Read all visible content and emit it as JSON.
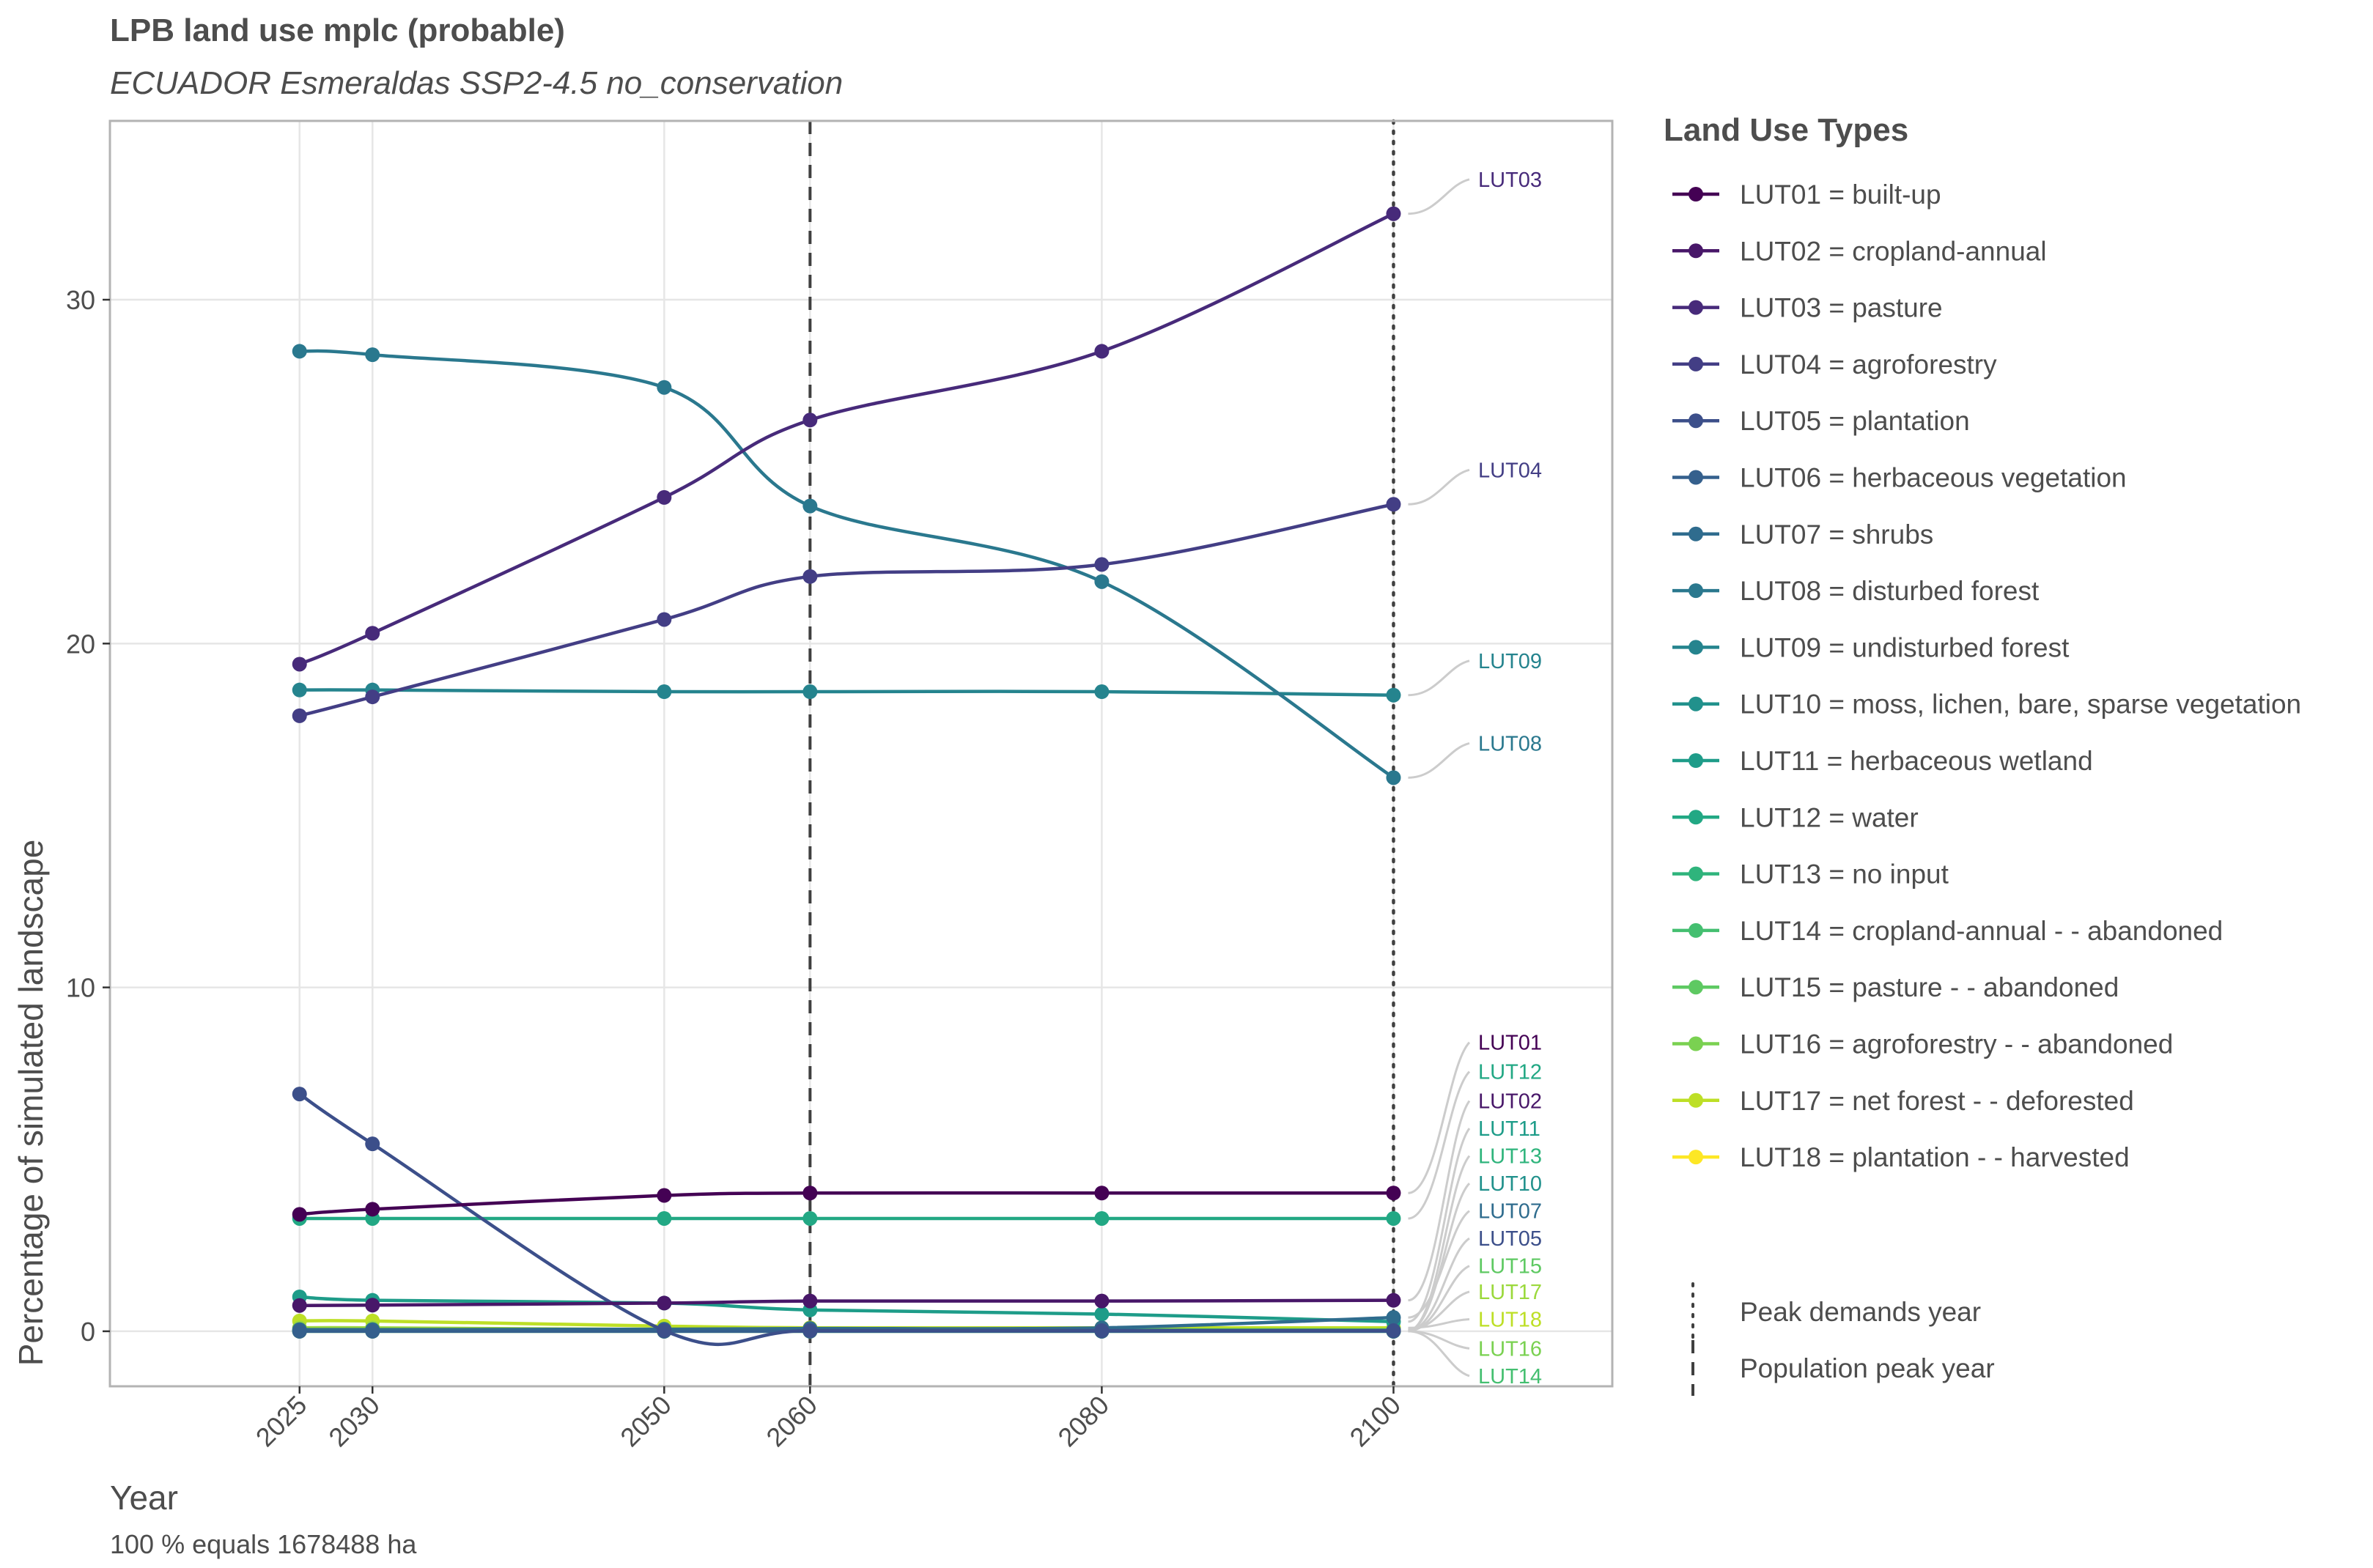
{
  "chart_data": {
    "type": "line",
    "title": "LPB land use mplc (probable)",
    "subtitle": "ECUADOR Esmeraldas SSP2-4.5 no_conservation",
    "xlabel": "Year",
    "ylabel": "Percentage of simulated landscape",
    "caption": "100 % equals 1678488 ha",
    "x": [
      2025,
      2030,
      2050,
      2060,
      2080,
      2100
    ],
    "xlim": [
      2012,
      2115
    ],
    "ylim": [
      -1.6,
      35.2
    ],
    "x_ticks": [
      2025,
      2030,
      2050,
      2060,
      2080,
      2100
    ],
    "y_ticks": [
      0,
      10,
      20,
      30
    ],
    "grid": true,
    "reference_lines": [
      {
        "x": 2060,
        "style": "dashed",
        "label": "Population peak year"
      },
      {
        "x": 2100,
        "style": "dotted",
        "label": "Peak demands year"
      }
    ],
    "legend": {
      "title": "Land Use Types",
      "placement": "right",
      "line_types_title": ""
    },
    "series": [
      {
        "id": "LUT01",
        "name": "LUT01 = built-up",
        "color": "#440154",
        "values": [
          3.4,
          3.55,
          3.95,
          4.02,
          4.02,
          4.02
        ],
        "end_label": "LUT01",
        "label_y": 8.4
      },
      {
        "id": "LUT02",
        "name": "LUT02 = cropland-annual",
        "color": "#481769",
        "values": [
          0.75,
          0.76,
          0.82,
          0.88,
          0.88,
          0.9
        ],
        "end_label": "LUT02",
        "label_y": 6.7
      },
      {
        "id": "LUT03",
        "name": "LUT03 = pasture",
        "color": "#472A7A",
        "values": [
          19.4,
          20.3,
          24.25,
          26.5,
          28.5,
          32.5
        ],
        "end_label": "LUT03",
        "label_y": 33.5
      },
      {
        "id": "LUT04",
        "name": "LUT04 = agroforestry",
        "color": "#433E85",
        "values": [
          17.9,
          18.45,
          20.7,
          21.95,
          22.3,
          24.05
        ],
        "end_label": "LUT04",
        "label_y": 25.05
      },
      {
        "id": "LUT05",
        "name": "LUT05 = plantation",
        "color": "#3C4F8A",
        "values": [
          6.9,
          5.45,
          0.02,
          0.02,
          0.02,
          0.02
        ],
        "end_label": "LUT05",
        "label_y": 2.7
      },
      {
        "id": "LUT06",
        "name": "LUT06 = herbaceous vegetation",
        "color": "#35608D",
        "values": [
          0,
          0,
          0,
          0,
          0,
          0
        ],
        "end_label": "",
        "label_y": 0
      },
      {
        "id": "LUT07",
        "name": "LUT07 = shrubs",
        "color": "#2F6C8E",
        "values": [
          0.05,
          0.05,
          0.06,
          0.08,
          0.1,
          0.4
        ],
        "end_label": "LUT07",
        "label_y": 3.5
      },
      {
        "id": "LUT08",
        "name": "LUT08 = disturbed forest",
        "color": "#2A788E",
        "values": [
          28.5,
          28.4,
          27.45,
          24.0,
          21.8,
          16.1
        ],
        "end_label": "LUT08",
        "label_y": 17.1
      },
      {
        "id": "LUT09",
        "name": "LUT09 = undisturbed forest",
        "color": "#25848E",
        "values": [
          18.65,
          18.65,
          18.6,
          18.6,
          18.6,
          18.5
        ],
        "end_label": "LUT09",
        "label_y": 19.5
      },
      {
        "id": "LUT10",
        "name": "LUT10 = moss, lichen, bare, sparse vegetation",
        "color": "#21918C",
        "values": [
          0.03,
          0.03,
          0.03,
          0.03,
          0.03,
          0.03
        ],
        "end_label": "LUT10",
        "label_y": 4.3
      },
      {
        "id": "LUT11",
        "name": "LUT11 = herbaceous wetland",
        "color": "#1E9C89",
        "values": [
          1.0,
          0.9,
          0.82,
          0.62,
          0.5,
          0.28
        ],
        "end_label": "LUT11",
        "label_y": 5.9
      },
      {
        "id": "LUT12",
        "name": "LUT12 = water",
        "color": "#22A884",
        "values": [
          3.28,
          3.28,
          3.28,
          3.28,
          3.28,
          3.28
        ],
        "end_label": "LUT12",
        "label_y": 7.55
      },
      {
        "id": "LUT13",
        "name": "LUT13 = no input",
        "color": "#2FB47C",
        "values": [
          0.02,
          0.02,
          0.02,
          0.02,
          0.02,
          0.02
        ],
        "end_label": "LUT13",
        "label_y": 5.1
      },
      {
        "id": "LUT14",
        "name": "LUT14 = cropland-annual - - abandoned",
        "color": "#44BF70",
        "values": [
          0.0,
          0.0,
          0.0,
          0.0,
          0.0,
          0.0
        ],
        "end_label": "LUT14",
        "label_y": -1.3
      },
      {
        "id": "LUT15",
        "name": "LUT15 = pasture - - abandoned",
        "color": "#5EC962",
        "values": [
          0.01,
          0.01,
          0.01,
          0.01,
          0.01,
          0.01
        ],
        "end_label": "LUT15",
        "label_y": 1.9
      },
      {
        "id": "LUT16",
        "name": "LUT16 = agroforestry - - abandoned",
        "color": "#7AD151",
        "values": [
          0.0,
          0.0,
          0.0,
          0.0,
          0.0,
          0.0
        ],
        "end_label": "LUT16",
        "label_y": -0.5
      },
      {
        "id": "LUT17",
        "name": "LUT17 = net forest - - deforested",
        "color": "#9BD93C",
        "values": [
          0.1,
          0.1,
          0.05,
          0.05,
          0.05,
          0.05
        ],
        "end_label": "LUT17",
        "label_y": 1.15
      },
      {
        "id": "LUT18",
        "name": "LUT18 = plantation - - harvested",
        "color": "#BDDF26",
        "values": [
          0.3,
          0.3,
          0.15,
          0.1,
          0.1,
          0.1
        ],
        "end_label": "LUT18",
        "label_y": 0.35
      }
    ],
    "legend_colors": [
      "#440154",
      "#481769",
      "#472A7A",
      "#433E85",
      "#3C4F8A",
      "#35608D",
      "#2F6C8E",
      "#2A788E",
      "#25848E",
      "#21918C",
      "#1E9C89",
      "#22A884",
      "#2FB47C",
      "#44BF70",
      "#5EC962",
      "#7AD151",
      "#BDDF26",
      "#FDE725"
    ]
  }
}
